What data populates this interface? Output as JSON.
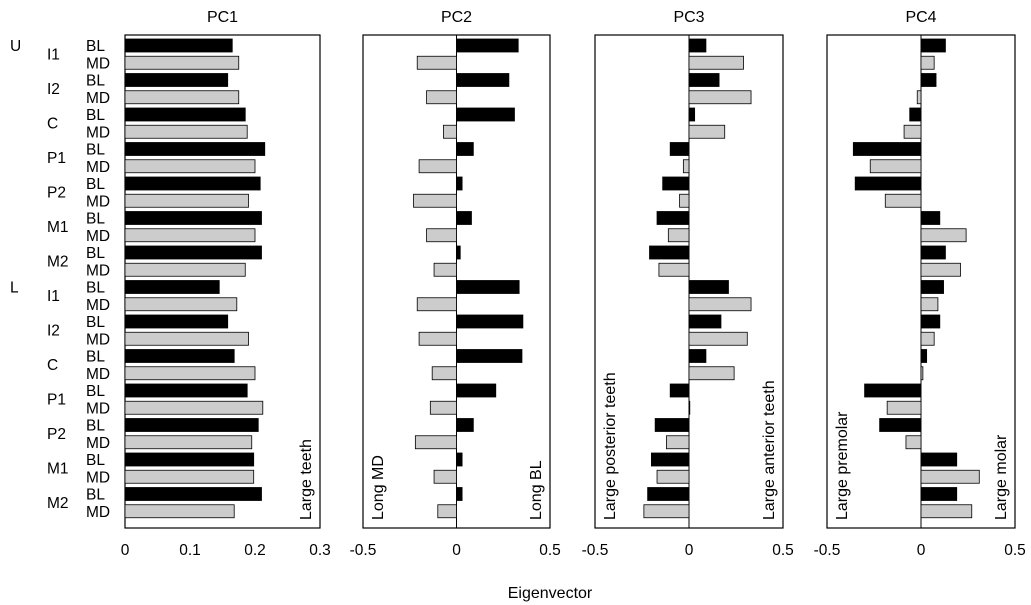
{
  "figure": {
    "xlabel": "Eigenvector",
    "jaw_labels": [
      "U",
      "L"
    ],
    "tooth_labels": [
      "I1",
      "I2",
      "C",
      "P1",
      "P2",
      "M1",
      "M2",
      "I1",
      "I2",
      "C",
      "P1",
      "P2",
      "M1",
      "M2"
    ],
    "measure_labels": [
      "BL",
      "MD"
    ],
    "colors": {
      "BL": "#000000",
      "MD": "#cccccc",
      "frame": "#000000"
    }
  },
  "chart_data": [
    {
      "type": "bar",
      "title": "PC1",
      "xlim": [
        0,
        0.3
      ],
      "ticks": [
        "0",
        "0.1",
        "0.2",
        "0.3"
      ],
      "annotations": {
        "right": "Large teeth"
      },
      "series": [
        {
          "name": "BL",
          "values": [
            0.165,
            0.158,
            0.185,
            0.215,
            0.208,
            0.21,
            0.21,
            0.145,
            0.158,
            0.168,
            0.188,
            0.205,
            0.198,
            0.21
          ]
        },
        {
          "name": "MD",
          "values": [
            0.175,
            0.175,
            0.188,
            0.2,
            0.19,
            0.2,
            0.185,
            0.172,
            0.19,
            0.2,
            0.212,
            0.195,
            0.198,
            0.168
          ]
        }
      ]
    },
    {
      "type": "bar",
      "title": "PC2",
      "xlim": [
        -0.5,
        0.5
      ],
      "ticks": [
        "-0.5",
        "0",
        "0.5"
      ],
      "annotations": {
        "left": "Long MD",
        "right": "Long BL"
      },
      "series": [
        {
          "name": "BL",
          "values": [
            0.33,
            0.28,
            0.31,
            0.09,
            0.03,
            0.08,
            0.02,
            0.335,
            0.355,
            0.35,
            0.21,
            0.09,
            0.03,
            0.03
          ]
        },
        {
          "name": "MD",
          "values": [
            -0.21,
            -0.16,
            -0.07,
            -0.2,
            -0.23,
            -0.16,
            -0.12,
            -0.21,
            -0.2,
            -0.13,
            -0.14,
            -0.22,
            -0.12,
            -0.1
          ]
        }
      ]
    },
    {
      "type": "bar",
      "title": "PC3",
      "xlim": [
        -0.5,
        0.5
      ],
      "ticks": [
        "-0.5",
        "0",
        "0.5"
      ],
      "annotations": {
        "left": "Large posterior teeth",
        "right": "Large anterior teeth"
      },
      "series": [
        {
          "name": "BL",
          "values": [
            0.09,
            0.16,
            0.03,
            -0.1,
            -0.14,
            -0.17,
            -0.21,
            0.21,
            0.17,
            0.09,
            -0.1,
            -0.18,
            -0.2,
            -0.22
          ]
        },
        {
          "name": "MD",
          "values": [
            0.29,
            0.33,
            0.19,
            -0.03,
            -0.05,
            -0.11,
            -0.16,
            0.33,
            0.31,
            0.24,
            0,
            -0.12,
            -0.17,
            -0.24
          ]
        }
      ]
    },
    {
      "type": "bar",
      "title": "PC4",
      "xlim": [
        -0.5,
        0.5
      ],
      "ticks": [
        "-0.5",
        "0",
        "0.5"
      ],
      "annotations": {
        "left": "Large premolar",
        "right": "Large molar"
      },
      "series": [
        {
          "name": "BL",
          "values": [
            0.13,
            0.08,
            -0.06,
            -0.36,
            -0.35,
            0.1,
            0.13,
            0.12,
            0.1,
            0.03,
            -0.3,
            -0.22,
            0.19,
            0.19
          ]
        },
        {
          "name": "MD",
          "values": [
            0.07,
            -0.02,
            -0.09,
            -0.27,
            -0.19,
            0.24,
            0.21,
            0.09,
            0.07,
            0.01,
            -0.18,
            -0.08,
            0.31,
            0.27
          ]
        }
      ]
    }
  ]
}
